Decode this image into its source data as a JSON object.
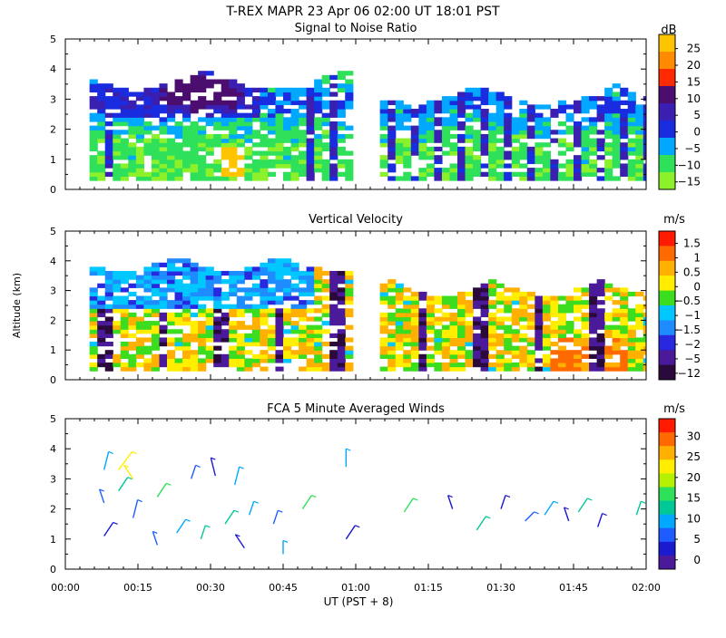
{
  "title": "T-REX  MAPR 23 Apr 06  02:00 UT  18:01  PST",
  "xaxis": {
    "label": "UT  (PST + 8)",
    "ticks": [
      "00:00",
      "00:15",
      "00:30",
      "00:45",
      "01:00",
      "01:15",
      "01:30",
      "01:45",
      "02:00"
    ]
  },
  "yaxis_label": "Altitude (km)",
  "panels": [
    {
      "title": "Signal to Noise Ratio",
      "unit": "dB",
      "yticks": [
        "0",
        "1",
        "2",
        "3",
        "4",
        "5"
      ],
      "colorbar": {
        "labels": [
          "25",
          "20",
          "15",
          "10",
          "5",
          "0",
          "−5",
          "−10",
          "−15"
        ],
        "colors": [
          "#ffc400",
          "#ff8c00",
          "#ff2a00",
          "#4b0d6e",
          "#3a1fb0",
          "#1a2ce0",
          "#00a8ff",
          "#2ee05a",
          "#8cf02a"
        ]
      }
    },
    {
      "title": "Vertical Velocity",
      "unit": "m/s",
      "yticks": [
        "0",
        "1",
        "2",
        "3",
        "4",
        "5"
      ],
      "colorbar": {
        "labels": [
          "1.5",
          "1",
          "0.5",
          "0",
          "−0.5",
          "−1",
          "−1.5",
          "−2",
          "−5",
          "−12"
        ],
        "colors": [
          "#ff1a00",
          "#ff6a00",
          "#ffb000",
          "#ffee00",
          "#3cdc1e",
          "#00c8ff",
          "#1e8cff",
          "#2828e0",
          "#4a1a9a",
          "#2a0a3a"
        ]
      }
    },
    {
      "title": "FCA 5 Minute Averaged Winds",
      "unit": "m/s",
      "yticks": [
        "0",
        "1",
        "2",
        "3",
        "4",
        "5"
      ],
      "colorbar": {
        "labels": [
          "30",
          "25",
          "20",
          "15",
          "10",
          "5",
          "0"
        ],
        "colors": [
          "#ff1a00",
          "#ff6a00",
          "#ffb000",
          "#ffee00",
          "#b4f000",
          "#2ee05a",
          "#00c896",
          "#00a8ff",
          "#1e5cff",
          "#1a1ad0",
          "#4a1a9a"
        ]
      }
    }
  ],
  "chart_data": [
    {
      "type": "heatmap",
      "title": "Signal to Noise Ratio",
      "xlabel": "UT (PST + 8)",
      "ylabel": "Altitude (km)",
      "xlim": [
        0,
        120
      ],
      "ylim": [
        0,
        5
      ],
      "colorbar_unit": "dB",
      "colorbar_range": [
        -15,
        25
      ],
      "blocks": [
        {
          "x0": 5,
          "x1": 59,
          "top": 3.9,
          "bottom": 0.3
        },
        {
          "x0": 65,
          "x1": 120,
          "top": 3.4,
          "bottom": 0.3
        }
      ],
      "gap": [
        59,
        65
      ],
      "cores": [
        {
          "x": 27,
          "y": 3.2,
          "w": 7,
          "h": 0.8,
          "value": 8
        },
        {
          "x": 33,
          "y": 0.7,
          "w": 2,
          "h": 0.8,
          "value": 25
        },
        {
          "x": 57,
          "y": 3.4,
          "w": 1,
          "h": 0.6,
          "value": 5
        }
      ]
    },
    {
      "type": "heatmap",
      "title": "Vertical Velocity",
      "xlabel": "UT (PST + 8)",
      "ylabel": "Altitude (km)",
      "xlim": [
        0,
        120
      ],
      "ylim": [
        0,
        5
      ],
      "colorbar_unit": "m/s",
      "colorbar_range": [
        -12,
        1.5
      ],
      "blocks": [
        {
          "x0": 5,
          "x1": 59,
          "top": 4.1,
          "bottom": 0.3
        },
        {
          "x0": 65,
          "x1": 120,
          "top": 3.3,
          "bottom": 0.3
        }
      ],
      "gap": [
        59,
        65
      ]
    },
    {
      "type": "scatter",
      "subtype": "wind_vectors",
      "title": "FCA 5 Minute Averaged Winds",
      "xlabel": "UT (PST + 8)",
      "ylabel": "Altitude (km)",
      "xlim": [
        0,
        120
      ],
      "ylim": [
        0,
        5
      ],
      "colorbar_unit": "m/s",
      "colorbar_range": [
        0,
        30
      ],
      "samples": [
        {
          "t": 8,
          "z": 3.3,
          "u": 1,
          "v": 4,
          "s": 8
        },
        {
          "t": 8,
          "z": 2.2,
          "u": -1,
          "v": 3,
          "s": 5
        },
        {
          "t": 8,
          "z": 1.1,
          "u": 2,
          "v": 3,
          "s": 4
        },
        {
          "t": 11,
          "z": 3.3,
          "u": 3,
          "v": 4,
          "s": 22
        },
        {
          "t": 11,
          "z": 2.6,
          "u": 2,
          "v": 3,
          "s": 12
        },
        {
          "t": 14,
          "z": 3.0,
          "u": -2,
          "v": 3,
          "s": 21
        },
        {
          "t": 14,
          "z": 1.7,
          "u": 1,
          "v": 4,
          "s": 6
        },
        {
          "t": 19,
          "z": 2.4,
          "u": 2,
          "v": 3,
          "s": 14
        },
        {
          "t": 19,
          "z": 0.8,
          "u": -1,
          "v": 3,
          "s": 7
        },
        {
          "t": 23,
          "z": 1.2,
          "u": 2,
          "v": 3,
          "s": 9
        },
        {
          "t": 26,
          "z": 3.0,
          "u": 1,
          "v": 3,
          "s": 5
        },
        {
          "t": 28,
          "z": 1.0,
          "u": 1,
          "v": 3,
          "s": 11
        },
        {
          "t": 31,
          "z": 3.1,
          "u": -1,
          "v": 4,
          "s": 4
        },
        {
          "t": 33,
          "z": 1.5,
          "u": 2,
          "v": 3,
          "s": 13
        },
        {
          "t": 35,
          "z": 2.8,
          "u": 1,
          "v": 4,
          "s": 8
        },
        {
          "t": 37,
          "z": 0.7,
          "u": -2,
          "v": 3,
          "s": 3
        },
        {
          "t": 38,
          "z": 1.8,
          "u": 1,
          "v": 3,
          "s": 10
        },
        {
          "t": 43,
          "z": 1.5,
          "u": 1,
          "v": 3,
          "s": 6
        },
        {
          "t": 45,
          "z": 0.5,
          "u": 0,
          "v": 3,
          "s": 10
        },
        {
          "t": 49,
          "z": 2.0,
          "u": 2,
          "v": 3,
          "s": 15
        },
        {
          "t": 58,
          "z": 3.4,
          "u": 0,
          "v": 4,
          "s": 9
        },
        {
          "t": 58,
          "z": 1.0,
          "u": 2,
          "v": 3,
          "s": 3
        },
        {
          "t": 70,
          "z": 1.9,
          "u": 2,
          "v": 3,
          "s": 14
        },
        {
          "t": 80,
          "z": 2.0,
          "u": -1,
          "v": 3,
          "s": 4
        },
        {
          "t": 85,
          "z": 1.3,
          "u": 2,
          "v": 3,
          "s": 12
        },
        {
          "t": 90,
          "z": 2.0,
          "u": 1,
          "v": 3,
          "s": 4
        },
        {
          "t": 95,
          "z": 1.6,
          "u": 2,
          "v": 2,
          "s": 5
        },
        {
          "t": 99,
          "z": 1.8,
          "u": 2,
          "v": 3,
          "s": 8
        },
        {
          "t": 104,
          "z": 1.6,
          "u": -1,
          "v": 3,
          "s": 3
        },
        {
          "t": 106,
          "z": 1.9,
          "u": 2,
          "v": 3,
          "s": 13
        },
        {
          "t": 110,
          "z": 1.4,
          "u": 1,
          "v": 3,
          "s": 4
        },
        {
          "t": 118,
          "z": 1.8,
          "u": 1,
          "v": 3,
          "s": 12
        }
      ]
    }
  ]
}
